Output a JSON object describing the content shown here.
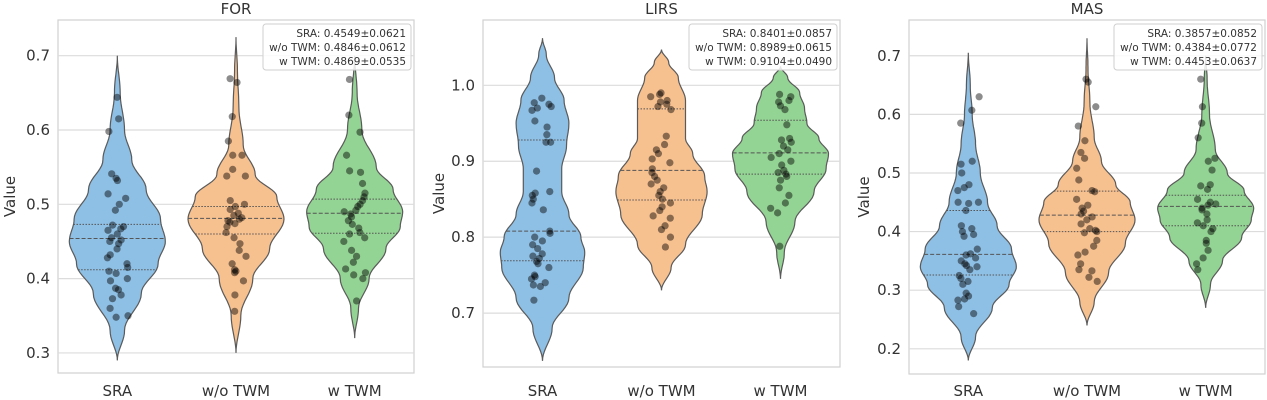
{
  "chart_data": [
    {
      "type": "violin",
      "title": "FOR",
      "ylabel": "Value",
      "xlabel": "",
      "categories": [
        "SRA",
        "w/o TWM",
        "w TWM"
      ],
      "yticks": [
        "0.3",
        "0.4",
        "0.5",
        "0.6",
        "0.7"
      ],
      "ylim": [
        0.273,
        0.748
      ],
      "grid": true,
      "legend_position": "top-right",
      "legend": [
        "SRA: 0.4549±0.0621",
        "w/o TWM: 0.4846±0.0612",
        "w TWM: 0.4869±0.0535"
      ],
      "series": [
        {
          "category": "SRA",
          "color": "#8ebfe4",
          "quartiles": [
            0.412,
            0.454,
            0.473
          ],
          "density": [
            [
              0.29,
              0
            ],
            [
              0.33,
              0.15
            ],
            [
              0.38,
              0.5
            ],
            [
              0.42,
              0.85
            ],
            [
              0.45,
              1.0
            ],
            [
              0.48,
              0.9
            ],
            [
              0.52,
              0.6
            ],
            [
              0.56,
              0.3
            ],
            [
              0.6,
              0.15
            ],
            [
              0.65,
              0.06
            ],
            [
              0.7,
              0
            ]
          ],
          "points": [
            0.644,
            0.615,
            0.598,
            0.541,
            0.535,
            0.532,
            0.514,
            0.508,
            0.5,
            0.492,
            0.472,
            0.47,
            0.467,
            0.465,
            0.46,
            0.455,
            0.452,
            0.45,
            0.447,
            0.44,
            0.432,
            0.428,
            0.42,
            0.415,
            0.41,
            0.407,
            0.4,
            0.397,
            0.387,
            0.385,
            0.378,
            0.373,
            0.36,
            0.35,
            0.348
          ]
        },
        {
          "category": "w/o TWM",
          "color": "#f7c08f",
          "quartiles": [
            0.46,
            0.481,
            0.497
          ],
          "density": [
            [
              0.3,
              0
            ],
            [
              0.35,
              0.1
            ],
            [
              0.4,
              0.35
            ],
            [
              0.44,
              0.7
            ],
            [
              0.48,
              1.0
            ],
            [
              0.51,
              0.85
            ],
            [
              0.54,
              0.4
            ],
            [
              0.58,
              0.15
            ],
            [
              0.63,
              0.06
            ],
            [
              0.68,
              0.03
            ],
            [
              0.725,
              0
            ]
          ],
          "points": [
            0.669,
            0.664,
            0.618,
            0.585,
            0.566,
            0.566,
            0.547,
            0.538,
            0.538,
            0.505,
            0.5,
            0.497,
            0.493,
            0.488,
            0.485,
            0.482,
            0.48,
            0.478,
            0.476,
            0.474,
            0.47,
            0.462,
            0.455,
            0.447,
            0.438,
            0.43,
            0.42,
            0.412,
            0.41,
            0.408,
            0.397,
            0.378,
            0.356
          ]
        },
        {
          "category": "w TWM",
          "color": "#93d393",
          "quartiles": [
            0.461,
            0.488,
            0.507
          ],
          "density": [
            [
              0.32,
              0
            ],
            [
              0.36,
              0.08
            ],
            [
              0.4,
              0.3
            ],
            [
              0.44,
              0.65
            ],
            [
              0.47,
              0.95
            ],
            [
              0.49,
              1.0
            ],
            [
              0.52,
              0.8
            ],
            [
              0.55,
              0.45
            ],
            [
              0.6,
              0.15
            ],
            [
              0.65,
              0.05
            ],
            [
              0.7,
              0
            ]
          ],
          "points": [
            0.668,
            0.62,
            0.597,
            0.566,
            0.545,
            0.543,
            0.528,
            0.515,
            0.51,
            0.505,
            0.5,
            0.497,
            0.492,
            0.49,
            0.487,
            0.483,
            0.478,
            0.473,
            0.468,
            0.462,
            0.46,
            0.455,
            0.45,
            0.438,
            0.43,
            0.422,
            0.413,
            0.408,
            0.405,
            0.4,
            0.37
          ]
        }
      ]
    },
    {
      "type": "violin",
      "title": "LIRS",
      "ylabel": "Value",
      "xlabel": "",
      "categories": [
        "SRA",
        "w/o TWM",
        "w TWM"
      ],
      "yticks": [
        "0.7",
        "0.8",
        "0.9",
        "1.0"
      ],
      "ylim": [
        0.629,
        1.086
      ],
      "grid": true,
      "legend_position": "top-right",
      "legend": [
        "SRA: 0.8401±0.0857",
        "w/o TWM: 0.8989±0.0615",
        "w TWM: 0.9104±0.0490"
      ],
      "series": [
        {
          "category": "SRA",
          "color": "#8ebfe4",
          "quartiles": [
            0.769,
            0.808,
            0.928
          ],
          "density": [
            [
              0.637,
              0
            ],
            [
              0.68,
              0.2
            ],
            [
              0.72,
              0.55
            ],
            [
              0.76,
              0.85
            ],
            [
              0.78,
              0.88
            ],
            [
              0.8,
              0.8
            ],
            [
              0.83,
              0.55
            ],
            [
              0.86,
              0.4
            ],
            [
              0.89,
              0.4
            ],
            [
              0.92,
              0.5
            ],
            [
              0.95,
              0.55
            ],
            [
              0.98,
              0.45
            ],
            [
              1.01,
              0.25
            ],
            [
              1.04,
              0.08
            ],
            [
              1.062,
              0
            ]
          ],
          "points": [
            0.983,
            0.977,
            0.975,
            0.972,
            0.97,
            0.967,
            0.953,
            0.945,
            0.935,
            0.925,
            0.925,
            0.887,
            0.86,
            0.858,
            0.855,
            0.85,
            0.845,
            0.836,
            0.808,
            0.805,
            0.8,
            0.795,
            0.79,
            0.785,
            0.778,
            0.775,
            0.772,
            0.768,
            0.765,
            0.76,
            0.75,
            0.748,
            0.745,
            0.74,
            0.737,
            0.735,
            0.717
          ]
        },
        {
          "category": "w/o TWM",
          "color": "#f7c08f",
          "quartiles": [
            0.849,
            0.888,
            0.969
          ],
          "density": [
            [
              0.73,
              0
            ],
            [
              0.76,
              0.2
            ],
            [
              0.79,
              0.5
            ],
            [
              0.83,
              0.85
            ],
            [
              0.86,
              0.95
            ],
            [
              0.88,
              0.9
            ],
            [
              0.91,
              0.65
            ],
            [
              0.93,
              0.5
            ],
            [
              0.95,
              0.5
            ],
            [
              0.98,
              0.5
            ],
            [
              1.01,
              0.35
            ],
            [
              1.03,
              0.15
            ],
            [
              1.047,
              0
            ]
          ],
          "points": [
            0.99,
            0.988,
            0.985,
            0.98,
            0.978,
            0.975,
            0.972,
            0.968,
            0.933,
            0.922,
            0.915,
            0.91,
            0.903,
            0.898,
            0.89,
            0.885,
            0.88,
            0.875,
            0.87,
            0.865,
            0.86,
            0.855,
            0.85,
            0.845,
            0.84,
            0.835,
            0.828,
            0.825,
            0.815,
            0.81,
            0.8,
            0.787
          ]
        },
        {
          "category": "w TWM",
          "color": "#93d393",
          "quartiles": [
            0.883,
            0.911,
            0.954
          ],
          "density": [
            [
              0.745,
              0
            ],
            [
              0.78,
              0.08
            ],
            [
              0.82,
              0.3
            ],
            [
              0.86,
              0.7
            ],
            [
              0.89,
              0.95
            ],
            [
              0.91,
              1.0
            ],
            [
              0.93,
              0.8
            ],
            [
              0.95,
              0.55
            ],
            [
              0.97,
              0.5
            ],
            [
              0.99,
              0.4
            ],
            [
              1.01,
              0.15
            ],
            [
              1.025,
              0
            ]
          ],
          "points": [
            0.988,
            0.985,
            0.98,
            0.978,
            0.973,
            0.968,
            0.948,
            0.93,
            0.928,
            0.925,
            0.92,
            0.915,
            0.91,
            0.905,
            0.9,
            0.895,
            0.888,
            0.885,
            0.883,
            0.88,
            0.875,
            0.865,
            0.855,
            0.845,
            0.838,
            0.832,
            0.788
          ]
        }
      ]
    },
    {
      "type": "violin",
      "title": "MAS",
      "ylabel": "Value",
      "xlabel": "",
      "categories": [
        "SRA",
        "w/o TWM",
        "w TWM"
      ],
      "yticks": [
        "0.2",
        "0.3",
        "0.4",
        "0.5",
        "0.6",
        "0.7"
      ],
      "ylim": [
        0.157,
        0.761
      ],
      "grid": true,
      "legend_position": "top-right",
      "legend": [
        "SRA: 0.3857±0.0852",
        "w/o TWM: 0.4384±0.0772",
        "w TWM: 0.4453±0.0637"
      ],
      "series": [
        {
          "category": "SRA",
          "color": "#8ebfe4",
          "quartiles": [
            0.326,
            0.361,
            0.436
          ],
          "density": [
            [
              0.18,
              0
            ],
            [
              0.22,
              0.15
            ],
            [
              0.27,
              0.5
            ],
            [
              0.31,
              0.85
            ],
            [
              0.34,
              1.0
            ],
            [
              0.37,
              0.9
            ],
            [
              0.41,
              0.6
            ],
            [
              0.45,
              0.4
            ],
            [
              0.5,
              0.25
            ],
            [
              0.55,
              0.15
            ],
            [
              0.6,
              0.08
            ],
            [
              0.65,
              0.04
            ],
            [
              0.705,
              0
            ]
          ],
          "points": [
            0.63,
            0.607,
            0.585,
            0.52,
            0.515,
            0.5,
            0.48,
            0.475,
            0.47,
            0.45,
            0.448,
            0.45,
            0.436,
            0.41,
            0.405,
            0.4,
            0.395,
            0.392,
            0.37,
            0.362,
            0.36,
            0.355,
            0.35,
            0.345,
            0.342,
            0.34,
            0.335,
            0.325,
            0.32,
            0.315,
            0.31,
            0.295,
            0.29,
            0.285,
            0.283,
            0.272,
            0.26
          ]
        },
        {
          "category": "w/o TWM",
          "color": "#f7c08f",
          "quartiles": [
            0.4,
            0.428,
            0.469
          ],
          "density": [
            [
              0.24,
              0
            ],
            [
              0.28,
              0.15
            ],
            [
              0.33,
              0.45
            ],
            [
              0.38,
              0.8
            ],
            [
              0.42,
              1.0
            ],
            [
              0.45,
              0.9
            ],
            [
              0.48,
              0.6
            ],
            [
              0.52,
              0.3
            ],
            [
              0.56,
              0.15
            ],
            [
              0.62,
              0.06
            ],
            [
              0.68,
              0.02
            ],
            [
              0.73,
              0
            ]
          ],
          "points": [
            0.66,
            0.655,
            0.613,
            0.58,
            0.555,
            0.535,
            0.525,
            0.508,
            0.488,
            0.47,
            0.468,
            0.455,
            0.445,
            0.44,
            0.435,
            0.43,
            0.425,
            0.42,
            0.413,
            0.405,
            0.402,
            0.4,
            0.398,
            0.385,
            0.375,
            0.365,
            0.36,
            0.345,
            0.335,
            0.333,
            0.322,
            0.315
          ]
        },
        {
          "category": "w TWM",
          "color": "#93d393",
          "quartiles": [
            0.41,
            0.443,
            0.462
          ],
          "density": [
            [
              0.27,
              0
            ],
            [
              0.31,
              0.1
            ],
            [
              0.35,
              0.35
            ],
            [
              0.39,
              0.75
            ],
            [
              0.42,
              0.95
            ],
            [
              0.44,
              1.0
            ],
            [
              0.47,
              0.8
            ],
            [
              0.5,
              0.45
            ],
            [
              0.54,
              0.2
            ],
            [
              0.6,
              0.08
            ],
            [
              0.66,
              0.03
            ],
            [
              0.7,
              0
            ]
          ],
          "points": [
            0.66,
            0.613,
            0.585,
            0.56,
            0.525,
            0.52,
            0.505,
            0.48,
            0.478,
            0.472,
            0.455,
            0.45,
            0.447,
            0.445,
            0.44,
            0.437,
            0.43,
            0.42,
            0.415,
            0.41,
            0.405,
            0.4,
            0.385,
            0.38,
            0.368,
            0.355,
            0.345,
            0.335
          ]
        }
      ]
    }
  ]
}
